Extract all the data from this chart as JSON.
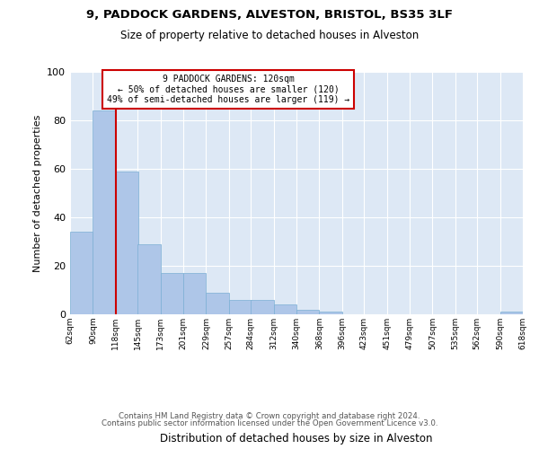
{
  "title_line1": "9, PADDOCK GARDENS, ALVESTON, BRISTOL, BS35 3LF",
  "title_line2": "Size of property relative to detached houses in Alveston",
  "xlabel": "Distribution of detached houses by size in Alveston",
  "ylabel": "Number of detached properties",
  "footer_line1": "Contains HM Land Registry data © Crown copyright and database right 2024.",
  "footer_line2": "Contains public sector information licensed under the Open Government Licence v3.0.",
  "annotation_line1": "9 PADDOCK GARDENS: 120sqm",
  "annotation_line2": "← 50% of detached houses are smaller (120)",
  "annotation_line3": "49% of semi-detached houses are larger (119) →",
  "bar_left_edges": [
    62,
    90,
    118,
    145,
    173,
    201,
    229,
    257,
    284,
    312,
    340,
    368,
    396,
    423,
    451,
    479,
    507,
    535,
    562,
    590
  ],
  "bar_heights": [
    34,
    84,
    59,
    29,
    17,
    17,
    9,
    6,
    6,
    4,
    2,
    1,
    0,
    0,
    0,
    0,
    0,
    0,
    0,
    1
  ],
  "bin_width": 28,
  "bar_color": "#aec6e8",
  "bar_edge_color": "#7bafd4",
  "vline_color": "#cc0000",
  "vline_x": 118,
  "annotation_box_color": "#cc0000",
  "background_color": "#dde8f5",
  "grid_color": "#ffffff",
  "ylim": [
    0,
    100
  ],
  "tick_labels": [
    "62sqm",
    "90sqm",
    "118sqm",
    "145sqm",
    "173sqm",
    "201sqm",
    "229sqm",
    "257sqm",
    "284sqm",
    "312sqm",
    "340sqm",
    "368sqm",
    "396sqm",
    "423sqm",
    "451sqm",
    "479sqm",
    "507sqm",
    "535sqm",
    "562sqm",
    "590sqm",
    "618sqm"
  ]
}
